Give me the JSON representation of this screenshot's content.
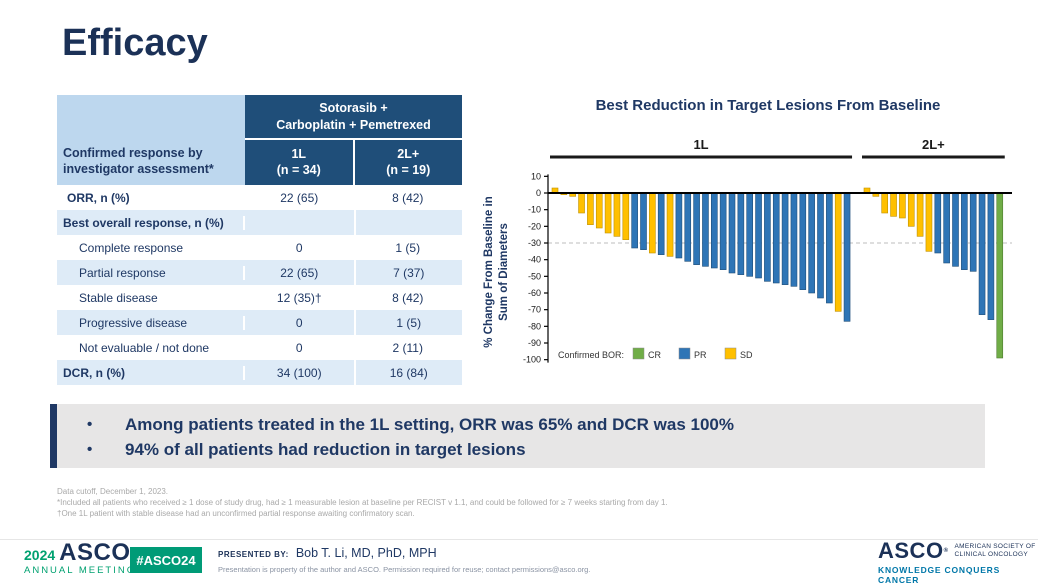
{
  "slide": {
    "title": "Efficacy"
  },
  "table": {
    "corner_label": "Confirmed response by investigator assessment*",
    "group_header_line1": "Sotorasib +",
    "group_header_line2": "Carboplatin + Pemetrexed",
    "col1_line1": "1L",
    "col1_line2": "(n = 34)",
    "col2_line1": "2L+",
    "col2_line2": "(n = 19)",
    "rows": [
      {
        "label": "ORR, n (%)",
        "c1": "22 (65)",
        "c2": "8 (42)"
      },
      {
        "label": "Best overall response, n (%)",
        "c1": "",
        "c2": ""
      },
      {
        "label": "Complete response",
        "c1": "0",
        "c2": "1 (5)"
      },
      {
        "label": "Partial response",
        "c1": "22 (65)",
        "c2": "7 (37)"
      },
      {
        "label": "Stable disease",
        "c1": "12 (35)†",
        "c2": "8 (42)"
      },
      {
        "label": "Progressive disease",
        "c1": "0",
        "c2": "1 (5)"
      },
      {
        "label": "Not evaluable / not done",
        "c1": "0",
        "c2": "2 (11)"
      },
      {
        "label": "DCR, n (%)",
        "c1": "34 (100)",
        "c2": "16 (84)"
      }
    ]
  },
  "chart_data": {
    "type": "bar",
    "subtype": "waterfall",
    "title": "Best Reduction in Target Lesions From Baseline",
    "ylabel": "% Change From Baseline in Sum of Diameters",
    "ylabel_line1": "% Change From Baseline in",
    "ylabel_line2": "Sum of Diameters",
    "ylim": [
      -100,
      10
    ],
    "yticks": [
      10,
      0,
      -10,
      -20,
      -30,
      -40,
      -50,
      -60,
      -70,
      -80,
      -90,
      -100
    ],
    "reference_line": -30,
    "grid": false,
    "legend": {
      "label": "Confirmed BOR:",
      "position": "bottom-left",
      "entries": [
        {
          "name": "CR",
          "color": "#70AD47"
        },
        {
          "name": "PR",
          "color": "#2E75B6"
        },
        {
          "name": "SD",
          "color": "#FFC000"
        }
      ]
    },
    "groups": [
      {
        "label": "1L",
        "bars": [
          {
            "value": 3,
            "bor": "SD"
          },
          {
            "value": -1,
            "bor": "SD"
          },
          {
            "value": -2,
            "bor": "SD"
          },
          {
            "value": -12,
            "bor": "SD"
          },
          {
            "value": -19,
            "bor": "SD"
          },
          {
            "value": -21,
            "bor": "SD"
          },
          {
            "value": -24,
            "bor": "SD"
          },
          {
            "value": -26,
            "bor": "SD"
          },
          {
            "value": -28,
            "bor": "SD"
          },
          {
            "value": -33,
            "bor": "PR"
          },
          {
            "value": -34,
            "bor": "PR"
          },
          {
            "value": -36,
            "bor": "SD"
          },
          {
            "value": -37,
            "bor": "PR"
          },
          {
            "value": -38,
            "bor": "SD"
          },
          {
            "value": -39,
            "bor": "PR"
          },
          {
            "value": -41,
            "bor": "PR"
          },
          {
            "value": -43,
            "bor": "PR"
          },
          {
            "value": -44,
            "bor": "PR"
          },
          {
            "value": -45,
            "bor": "PR"
          },
          {
            "value": -46,
            "bor": "PR"
          },
          {
            "value": -48,
            "bor": "PR"
          },
          {
            "value": -49,
            "bor": "PR"
          },
          {
            "value": -50,
            "bor": "PR"
          },
          {
            "value": -51,
            "bor": "PR"
          },
          {
            "value": -53,
            "bor": "PR"
          },
          {
            "value": -54,
            "bor": "PR"
          },
          {
            "value": -55,
            "bor": "PR"
          },
          {
            "value": -56,
            "bor": "PR"
          },
          {
            "value": -58,
            "bor": "PR"
          },
          {
            "value": -60,
            "bor": "PR"
          },
          {
            "value": -63,
            "bor": "PR"
          },
          {
            "value": -66,
            "bor": "PR"
          },
          {
            "value": -71,
            "bor": "SD"
          },
          {
            "value": -77,
            "bor": "PR"
          }
        ]
      },
      {
        "label": "2L+",
        "bars": [
          {
            "value": 3,
            "bor": "SD"
          },
          {
            "value": -2,
            "bor": "SD"
          },
          {
            "value": -12,
            "bor": "SD"
          },
          {
            "value": -14,
            "bor": "SD"
          },
          {
            "value": -15,
            "bor": "SD"
          },
          {
            "value": -20,
            "bor": "SD"
          },
          {
            "value": -26,
            "bor": "SD"
          },
          {
            "value": -35,
            "bor": "SD"
          },
          {
            "value": -36,
            "bor": "PR"
          },
          {
            "value": -42,
            "bor": "PR"
          },
          {
            "value": -44,
            "bor": "PR"
          },
          {
            "value": -46,
            "bor": "PR"
          },
          {
            "value": -47,
            "bor": "PR"
          },
          {
            "value": -73,
            "bor": "PR"
          },
          {
            "value": -76,
            "bor": "PR"
          },
          {
            "value": -99,
            "bor": "CR"
          }
        ]
      }
    ]
  },
  "callout": {
    "bullets": [
      "Among patients treated in the 1L setting, ORR was 65% and DCR was 100%",
      "94% of all patients had reduction in target lesions"
    ]
  },
  "footnotes": [
    "Data cutoff, December 1, 2023.",
    "*Included all patients who received ≥ 1 dose of study drug, had ≥ 1 measurable lesion at baseline per RECIST v 1.1, and could be followed for ≥ 7 weeks starting from day 1.",
    "†One 1L patient with stable disease had an unconfirmed partial response awaiting confirmatory scan."
  ],
  "footer": {
    "meeting_year": "2024",
    "meeting_logo": "ASCO",
    "meeting_sub": "ANNUAL MEETING",
    "hashtag": "#ASCO24",
    "presented_by_label": "PRESENTED BY:",
    "presenter": "Bob T. Li, MD, PhD, MPH",
    "permission": "Presentation is property of the author and ASCO. Permission required for reuse; contact permissions@asco.org.",
    "asco_wordmark": "ASCO",
    "asco_reg": "®",
    "society_line1": "AMERICAN SOCIETY OF",
    "society_line2": "CLINICAL ONCOLOGY",
    "tagline": "KNOWLEDGE CONQUERS CANCER"
  }
}
